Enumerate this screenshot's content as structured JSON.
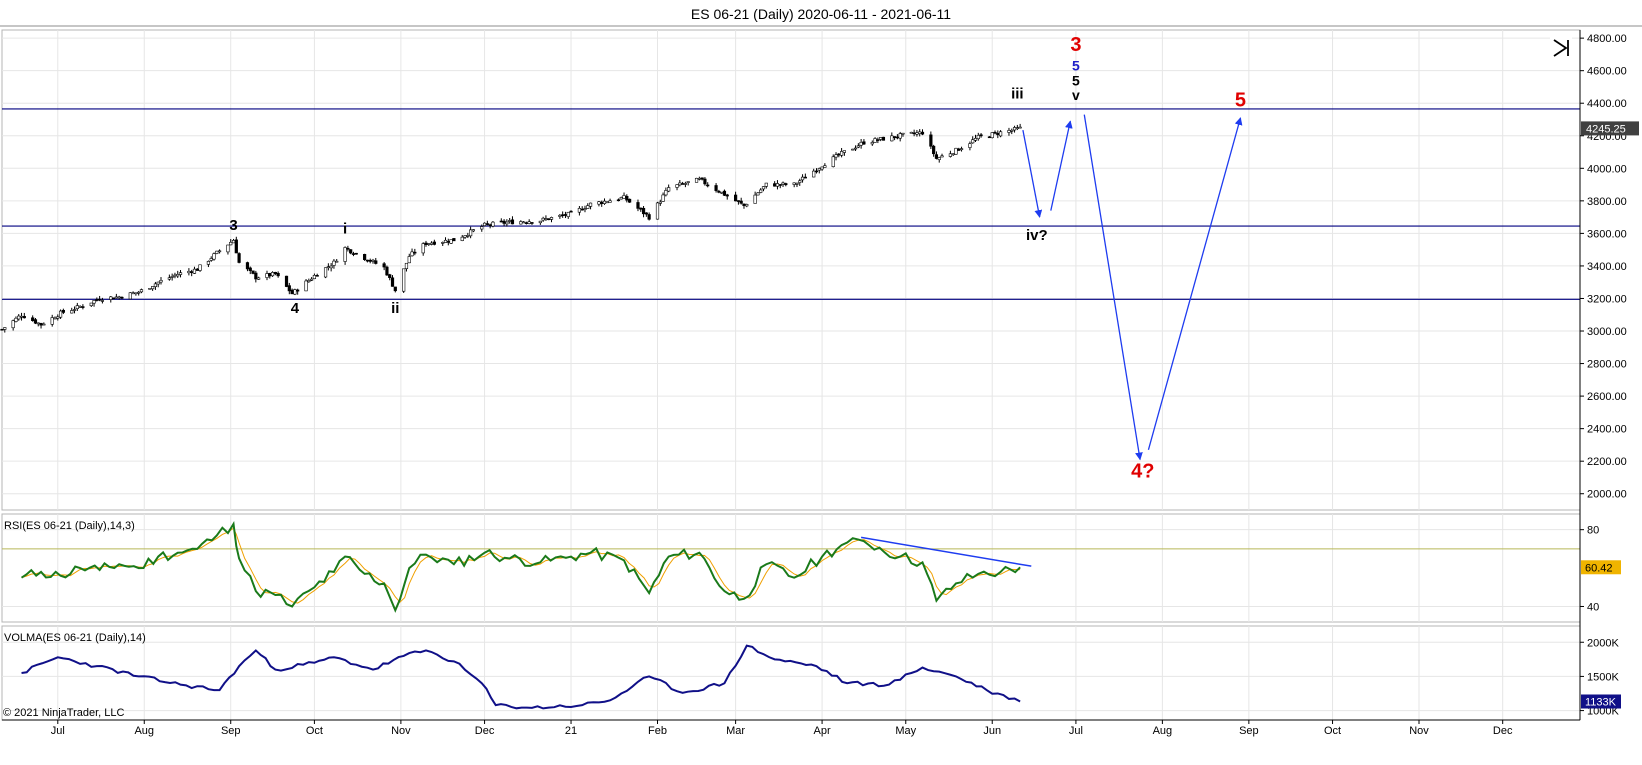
{
  "title": "ES 06-21 (Daily)  2020-06-11 - 2021-06-11",
  "copyright": "© 2021 NinjaTrader, LLC",
  "icons": {
    "chart_end_button": "skip-to-end-icon"
  },
  "colors": {
    "candle_up": "#ffffff",
    "candle_down": "#000000",
    "hline": "#000080",
    "arrow": "#1e3cf0",
    "red_label": "#e00000",
    "blue_label": "#1e1ec8",
    "rsi_line": "#1a7a1a",
    "rsi_signal": "#f0a000",
    "rsi_level": "#b8b858",
    "vol_line": "#101088",
    "grid": "#e6e6e6"
  },
  "price_panel": {
    "y_ticks": [
      "4800.00",
      "4600.00",
      "4400.00",
      "4200.00",
      "4000.00",
      "3800.00",
      "3600.00",
      "3400.00",
      "3200.00",
      "3000.00",
      "2800.00",
      "2600.00",
      "2400.00",
      "2200.00",
      "2000.00"
    ],
    "last_price": "4245.25",
    "horizontal_lines": [
      4365,
      3645,
      3195
    ],
    "wave_labels": [
      {
        "text": "3",
        "date": "2020-09-02",
        "price": 3620,
        "color": "black",
        "size": "m"
      },
      {
        "text": "4",
        "date": "2020-09-24",
        "price": 3110,
        "color": "black",
        "size": "m"
      },
      {
        "text": "i",
        "date": "2020-10-12",
        "price": 3600,
        "color": "black",
        "size": "m"
      },
      {
        "text": "ii",
        "date": "2020-10-30",
        "price": 3110,
        "color": "black",
        "size": "m"
      },
      {
        "text": "iii",
        "date": "2021-06-10",
        "price": 4430,
        "color": "black",
        "size": "m"
      },
      {
        "text": "iv?",
        "date": "2021-06-17",
        "price": 3560,
        "color": "black",
        "size": "m"
      },
      {
        "text": "3",
        "date": "2021-07-01",
        "price": 4720,
        "color": "red",
        "size": "l"
      },
      {
        "text": "5",
        "date": "2021-07-01",
        "price": 4600,
        "color": "blue",
        "size": "s"
      },
      {
        "text": "5",
        "date": "2021-07-01",
        "price": 4510,
        "color": "black",
        "size": "s"
      },
      {
        "text": "v",
        "date": "2021-07-01",
        "price": 4420,
        "color": "black",
        "size": "s"
      },
      {
        "text": "5",
        "date": "2021-08-29",
        "price": 4380,
        "color": "red",
        "size": "l"
      },
      {
        "text": "4?",
        "date": "2021-07-25",
        "price": 2100,
        "color": "red",
        "size": "l"
      }
    ],
    "arrows": [
      {
        "from": [
          "2021-06-12",
          4235
        ],
        "to": [
          "2021-06-18",
          3700
        ]
      },
      {
        "from": [
          "2021-06-22",
          3740
        ],
        "to": [
          "2021-06-29",
          4290
        ]
      },
      {
        "from": [
          "2021-07-04",
          4330
        ],
        "to": [
          "2021-07-24",
          2210
        ]
      },
      {
        "from": [
          "2021-07-27",
          2270
        ],
        "to": [
          "2021-08-29",
          4310
        ]
      }
    ]
  },
  "rsi_panel": {
    "label": "RSI(ES 06-21 (Daily),14,3)",
    "y_ticks": [
      "80",
      "40"
    ],
    "level": 70,
    "last_value": "60.42",
    "trendline": {
      "from": [
        "2021-04-15",
        76
      ],
      "to": [
        "2021-06-15",
        61
      ]
    }
  },
  "volma_panel": {
    "label": "VOLMA(ES 06-21 (Daily),14)",
    "y_ticks": [
      "2000K",
      "1500K",
      "1000K"
    ],
    "last_value": "1133K"
  },
  "x_axis": {
    "labels": [
      {
        "text": "Jul",
        "date": "2020-07-01"
      },
      {
        "text": "Aug",
        "date": "2020-08-01"
      },
      {
        "text": "Sep",
        "date": "2020-09-01"
      },
      {
        "text": "Oct",
        "date": "2020-10-01"
      },
      {
        "text": "Nov",
        "date": "2020-11-01"
      },
      {
        "text": "Dec",
        "date": "2020-12-01"
      },
      {
        "text": "21",
        "date": "2021-01-01"
      },
      {
        "text": "Feb",
        "date": "2021-02-01"
      },
      {
        "text": "Mar",
        "date": "2021-03-01"
      },
      {
        "text": "Apr",
        "date": "2021-04-01"
      },
      {
        "text": "May",
        "date": "2021-05-01"
      },
      {
        "text": "Jun",
        "date": "2021-06-01"
      },
      {
        "text": "Jul",
        "date": "2021-07-01"
      },
      {
        "text": "Aug",
        "date": "2021-08-01"
      },
      {
        "text": "Sep",
        "date": "2021-09-01"
      },
      {
        "text": "Oct",
        "date": "2021-10-01"
      },
      {
        "text": "Nov",
        "date": "2021-11-01"
      },
      {
        "text": "Dec",
        "date": "2021-12-01"
      }
    ]
  },
  "chart_data": {
    "type": "candlestick",
    "symbol": "ES 06-21",
    "x_range": [
      "2020-06-11",
      "2021-12-28"
    ],
    "price_range": [
      1900,
      4850
    ],
    "close_series": [
      [
        "2020-06-11",
        3010
      ],
      [
        "2020-06-18",
        3100
      ],
      [
        "2020-06-25",
        3040
      ],
      [
        "2020-07-02",
        3110
      ],
      [
        "2020-07-09",
        3150
      ],
      [
        "2020-07-16",
        3200
      ],
      [
        "2020-07-23",
        3210
      ],
      [
        "2020-07-30",
        3240
      ],
      [
        "2020-08-06",
        3300
      ],
      [
        "2020-08-13",
        3350
      ],
      [
        "2020-08-20",
        3380
      ],
      [
        "2020-08-27",
        3480
      ],
      [
        "2020-09-02",
        3560
      ],
      [
        "2020-09-04",
        3420
      ],
      [
        "2020-09-10",
        3330
      ],
      [
        "2020-09-17",
        3350
      ],
      [
        "2020-09-23",
        3230
      ],
      [
        "2020-10-01",
        3340
      ],
      [
        "2020-10-08",
        3420
      ],
      [
        "2020-10-12",
        3510
      ],
      [
        "2020-10-19",
        3450
      ],
      [
        "2020-10-26",
        3390
      ],
      [
        "2020-10-30",
        3250
      ],
      [
        "2020-11-04",
        3460
      ],
      [
        "2020-11-10",
        3540
      ],
      [
        "2020-11-20",
        3560
      ],
      [
        "2020-12-01",
        3650
      ],
      [
        "2020-12-10",
        3670
      ],
      [
        "2020-12-21",
        3680
      ],
      [
        "2021-01-01",
        3720
      ],
      [
        "2021-01-08",
        3780
      ],
      [
        "2021-01-20",
        3820
      ],
      [
        "2021-01-29",
        3700
      ],
      [
        "2021-02-05",
        3880
      ],
      [
        "2021-02-16",
        3930
      ],
      [
        "2021-02-25",
        3840
      ],
      [
        "2021-03-04",
        3770
      ],
      [
        "2021-03-12",
        3900
      ],
      [
        "2021-03-22",
        3900
      ],
      [
        "2021-04-01",
        4020
      ],
      [
        "2021-04-08",
        4090
      ],
      [
        "2021-04-16",
        4160
      ],
      [
        "2021-04-29",
        4200
      ],
      [
        "2021-05-07",
        4220
      ],
      [
        "2021-05-12",
        4060
      ],
      [
        "2021-05-19",
        4110
      ],
      [
        "2021-05-27",
        4190
      ],
      [
        "2021-06-04",
        4220
      ],
      [
        "2021-06-11",
        4245
      ]
    ],
    "rsi_series": [
      [
        "2020-06-18",
        55
      ],
      [
        "2020-06-25",
        58
      ],
      [
        "2020-07-02",
        56
      ],
      [
        "2020-07-09",
        60
      ],
      [
        "2020-07-16",
        59
      ],
      [
        "2020-07-23",
        62
      ],
      [
        "2020-07-30",
        60
      ],
      [
        "2020-08-06",
        66
      ],
      [
        "2020-08-13",
        68
      ],
      [
        "2020-08-20",
        70
      ],
      [
        "2020-08-27",
        77
      ],
      [
        "2020-09-02",
        83
      ],
      [
        "2020-09-04",
        65
      ],
      [
        "2020-09-10",
        48
      ],
      [
        "2020-09-17",
        46
      ],
      [
        "2020-09-23",
        40
      ],
      [
        "2020-10-01",
        50
      ],
      [
        "2020-10-08",
        58
      ],
      [
        "2020-10-12",
        66
      ],
      [
        "2020-10-19",
        57
      ],
      [
        "2020-10-26",
        52
      ],
      [
        "2020-10-30",
        38
      ],
      [
        "2020-11-04",
        60
      ],
      [
        "2020-11-10",
        67
      ],
      [
        "2020-11-20",
        62
      ],
      [
        "2020-12-01",
        68
      ],
      [
        "2020-12-10",
        65
      ],
      [
        "2020-12-21",
        63
      ],
      [
        "2021-01-01",
        66
      ],
      [
        "2021-01-08",
        68
      ],
      [
        "2021-01-20",
        64
      ],
      [
        "2021-01-29",
        47
      ],
      [
        "2021-02-05",
        66
      ],
      [
        "2021-02-16",
        68
      ],
      [
        "2021-02-25",
        48
      ],
      [
        "2021-03-04",
        44
      ],
      [
        "2021-03-12",
        62
      ],
      [
        "2021-03-22",
        55
      ],
      [
        "2021-04-01",
        66
      ],
      [
        "2021-04-08",
        72
      ],
      [
        "2021-04-16",
        74
      ],
      [
        "2021-04-29",
        66
      ],
      [
        "2021-05-07",
        63
      ],
      [
        "2021-05-12",
        43
      ],
      [
        "2021-05-19",
        52
      ],
      [
        "2021-05-27",
        57
      ],
      [
        "2021-06-04",
        58
      ],
      [
        "2021-06-11",
        60.4
      ]
    ],
    "volma_series_k": [
      [
        "2020-06-18",
        1550
      ],
      [
        "2020-07-01",
        1780
      ],
      [
        "2020-07-15",
        1650
      ],
      [
        "2020-07-30",
        1500
      ],
      [
        "2020-08-14",
        1380
      ],
      [
        "2020-08-28",
        1300
      ],
      [
        "2020-09-04",
        1650
      ],
      [
        "2020-09-10",
        1880
      ],
      [
        "2020-09-17",
        1600
      ],
      [
        "2020-10-01",
        1700
      ],
      [
        "2020-10-08",
        1780
      ],
      [
        "2020-10-22",
        1600
      ],
      [
        "2020-11-02",
        1800
      ],
      [
        "2020-11-10",
        1880
      ],
      [
        "2020-11-20",
        1720
      ],
      [
        "2020-11-30",
        1400
      ],
      [
        "2020-12-05",
        1080
      ],
      [
        "2020-12-18",
        1040
      ],
      [
        "2021-01-05",
        1080
      ],
      [
        "2021-01-15",
        1150
      ],
      [
        "2021-01-29",
        1500
      ],
      [
        "2021-02-10",
        1260
      ],
      [
        "2021-02-25",
        1400
      ],
      [
        "2021-03-05",
        1950
      ],
      [
        "2021-03-15",
        1750
      ],
      [
        "2021-03-30",
        1650
      ],
      [
        "2021-04-10",
        1400
      ],
      [
        "2021-04-25",
        1380
      ],
      [
        "2021-05-07",
        1630
      ],
      [
        "2021-05-19",
        1500
      ],
      [
        "2021-05-30",
        1300
      ],
      [
        "2021-06-11",
        1133
      ]
    ]
  }
}
